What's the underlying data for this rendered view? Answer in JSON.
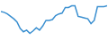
{
  "chart_data": {
    "type": "line",
    "categories": [
      null,
      null,
      null,
      null,
      null,
      null,
      null,
      null,
      null,
      null,
      null,
      null,
      null,
      null,
      null,
      null,
      null,
      null,
      null,
      null,
      null,
      null,
      null,
      null,
      null,
      null,
      null,
      null,
      null,
      null,
      null,
      null,
      null,
      null
    ],
    "values": [
      33,
      32,
      30,
      27,
      24,
      20,
      12,
      8,
      10,
      6,
      9,
      13,
      10,
      15,
      22,
      22,
      23,
      28,
      30,
      31,
      38,
      38,
      40,
      40,
      27,
      26,
      25,
      24,
      18,
      22,
      39,
      39,
      39,
      40
    ],
    "color": "#3a8fd0",
    "ylim": [
      0,
      45
    ],
    "grid": false,
    "tick_labels": false
  }
}
